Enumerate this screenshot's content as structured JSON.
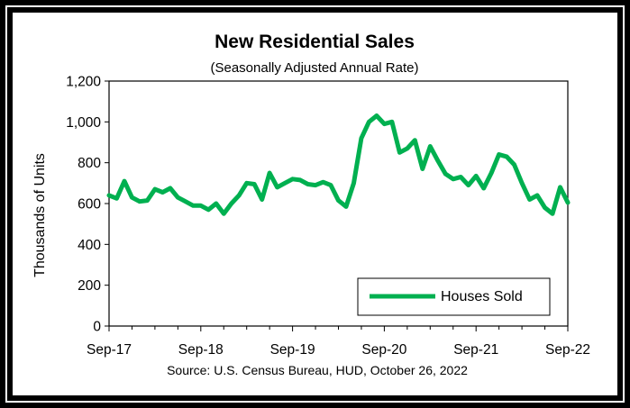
{
  "chart_data": {
    "type": "line",
    "title": "New Residential Sales",
    "subtitle": "(Seasonally Adjusted Annual Rate)",
    "ylabel": "Thousands of Units",
    "xlabel": "",
    "source": "Source:  U.S. Census Bureau, HUD, October 26, 2022",
    "ylim": [
      0,
      1200
    ],
    "y_ticks": [
      "0",
      "200",
      "400",
      "600",
      "800",
      "1,000",
      "1,200"
    ],
    "x_ticks": [
      "Sep-17",
      "Sep-18",
      "Sep-19",
      "Sep-20",
      "Sep-21",
      "Sep-22"
    ],
    "grid": false,
    "legend": "bottom-right",
    "line_color": "#00b050",
    "x": [
      "Sep-17",
      "Oct-17",
      "Nov-17",
      "Dec-17",
      "Jan-18",
      "Feb-18",
      "Mar-18",
      "Apr-18",
      "May-18",
      "Jun-18",
      "Jul-18",
      "Aug-18",
      "Sep-18",
      "Oct-18",
      "Nov-18",
      "Dec-18",
      "Jan-19",
      "Feb-19",
      "Mar-19",
      "Apr-19",
      "May-19",
      "Jun-19",
      "Jul-19",
      "Aug-19",
      "Sep-19",
      "Oct-19",
      "Nov-19",
      "Dec-19",
      "Jan-20",
      "Feb-20",
      "Mar-20",
      "Apr-20",
      "May-20",
      "Jun-20",
      "Jul-20",
      "Aug-20",
      "Sep-20",
      "Oct-20",
      "Nov-20",
      "Dec-20",
      "Jan-21",
      "Feb-21",
      "Mar-21",
      "Apr-21",
      "May-21",
      "Jun-21",
      "Jul-21",
      "Aug-21",
      "Sep-21",
      "Oct-21",
      "Nov-21",
      "Dec-21",
      "Jan-22",
      "Feb-22",
      "Mar-22",
      "Apr-22",
      "May-22",
      "Jun-22",
      "Jul-22",
      "Aug-22",
      "Sep-22"
    ],
    "series": [
      {
        "name": "Houses Sold",
        "values": [
          640,
          625,
          710,
          630,
          610,
          615,
          670,
          655,
          675,
          630,
          610,
          590,
          590,
          570,
          600,
          550,
          600,
          640,
          700,
          695,
          620,
          750,
          680,
          700,
          720,
          715,
          695,
          690,
          705,
          690,
          615,
          585,
          700,
          920,
          1000,
          1030,
          990,
          1000,
          850,
          870,
          910,
          770,
          880,
          810,
          745,
          720,
          730,
          690,
          735,
          675,
          750,
          840,
          830,
          790,
          700,
          620,
          640,
          580,
          550,
          680,
          605
        ]
      }
    ]
  }
}
